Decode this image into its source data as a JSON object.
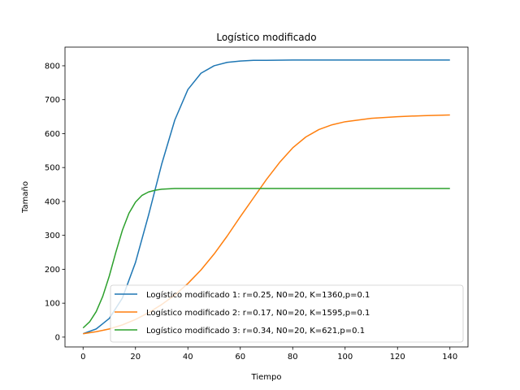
{
  "chart_data": {
    "type": "line",
    "title": "Logístico modificado",
    "xlabel": "Tiempo",
    "ylabel": "Tamaño",
    "xlim": [
      -6.9,
      146.9
    ],
    "ylim": [
      -29,
      855
    ],
    "xticks": [
      0,
      20,
      40,
      60,
      80,
      100,
      120,
      140
    ],
    "yticks": [
      0,
      100,
      200,
      300,
      400,
      500,
      600,
      700,
      800
    ],
    "grid": false,
    "legend_position": "lower-right",
    "series": [
      {
        "name": "Logístico modificado 1: r=0.25, N0=20, K=1360,p=0.1",
        "color": "#1f77b4",
        "x": [
          0,
          5,
          10,
          15,
          20,
          25,
          30,
          35,
          40,
          45,
          50,
          55,
          60,
          65,
          70,
          80,
          90,
          100,
          110,
          120,
          130,
          140
        ],
        "y": [
          10,
          24,
          55,
          115,
          220,
          360,
          510,
          640,
          730,
          778,
          800,
          810,
          814,
          816,
          816,
          817,
          817,
          817,
          817,
          817,
          817,
          817
        ]
      },
      {
        "name": "Logístico modificado 2: r=0.17, N0=20, K=1595,p=0.1",
        "color": "#ff7f0e",
        "x": [
          0,
          5,
          10,
          15,
          20,
          25,
          30,
          35,
          40,
          45,
          50,
          55,
          60,
          65,
          70,
          75,
          80,
          85,
          90,
          95,
          100,
          110,
          120,
          130,
          140
        ],
        "y": [
          10,
          16,
          24,
          36,
          52,
          72,
          96,
          124,
          158,
          198,
          245,
          298,
          355,
          410,
          465,
          515,
          558,
          590,
          612,
          626,
          635,
          645,
          650,
          653,
          655
        ]
      },
      {
        "name": "Logístico modificado 3: r=0.34, N0=20, K=621,p=0.1",
        "color": "#2ca02c",
        "x": [
          0,
          2.5,
          5,
          7.5,
          10,
          12.5,
          15,
          17.5,
          20,
          22.5,
          25,
          27.5,
          30,
          35,
          40,
          50,
          60,
          80,
          100,
          120,
          140
        ],
        "y": [
          27,
          45,
          75,
          120,
          180,
          250,
          315,
          365,
          398,
          418,
          428,
          433,
          436,
          438,
          438,
          438,
          438,
          438,
          438,
          438,
          438
        ]
      }
    ]
  }
}
